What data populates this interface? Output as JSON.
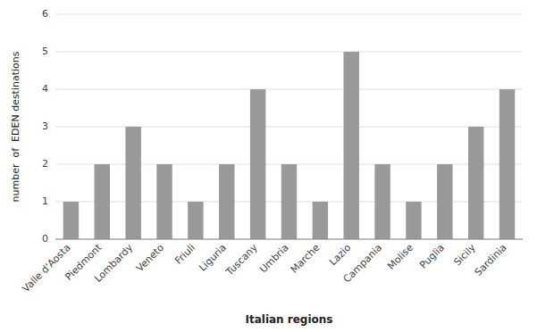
{
  "chart_data": {
    "type": "bar",
    "categories": [
      "Valle d'Aosta",
      "Piedmont",
      "Lombardy",
      "Veneto",
      "Friuli",
      "Liguria",
      "Tuscany",
      "Umbria",
      "Marche",
      "Lazio",
      "Campania",
      "Molise",
      "Puglia",
      "Sicily",
      "Sardinia"
    ],
    "values": [
      1,
      2,
      3,
      2,
      1,
      2,
      4,
      2,
      1,
      5,
      2,
      1,
      2,
      3,
      4
    ],
    "color": "#999999",
    "xlabel": "Italian regions",
    "ylabel": "number  of  EDEN destinations",
    "ylim": [
      0,
      6
    ],
    "yticks": [
      0,
      1,
      2,
      3,
      4,
      5,
      6
    ],
    "grid": true
  }
}
